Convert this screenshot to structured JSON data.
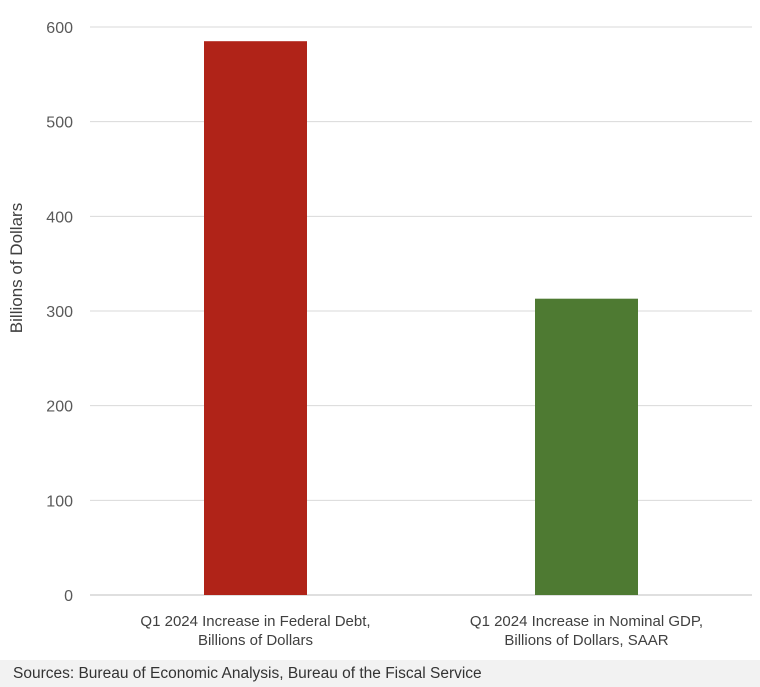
{
  "chart_data": {
    "type": "bar",
    "categories": [
      [
        "Q1 2024 Increase in Federal Debt,",
        "Billions of Dollars"
      ],
      [
        "Q1 2024 Increase in Nominal GDP,",
        "Billions of Dollars, SAAR"
      ]
    ],
    "values": [
      585,
      313
    ],
    "bar_colors": [
      "#b02318",
      "#4e7a32"
    ],
    "ylabel": "Billions of Dollars",
    "ylim": [
      0,
      600
    ],
    "yticks": [
      0,
      100,
      200,
      300,
      400,
      500,
      600
    ],
    "grid": true,
    "legend": "none"
  },
  "source": "Sources: Bureau of Economic Analysis, Bureau of the Fiscal Service"
}
